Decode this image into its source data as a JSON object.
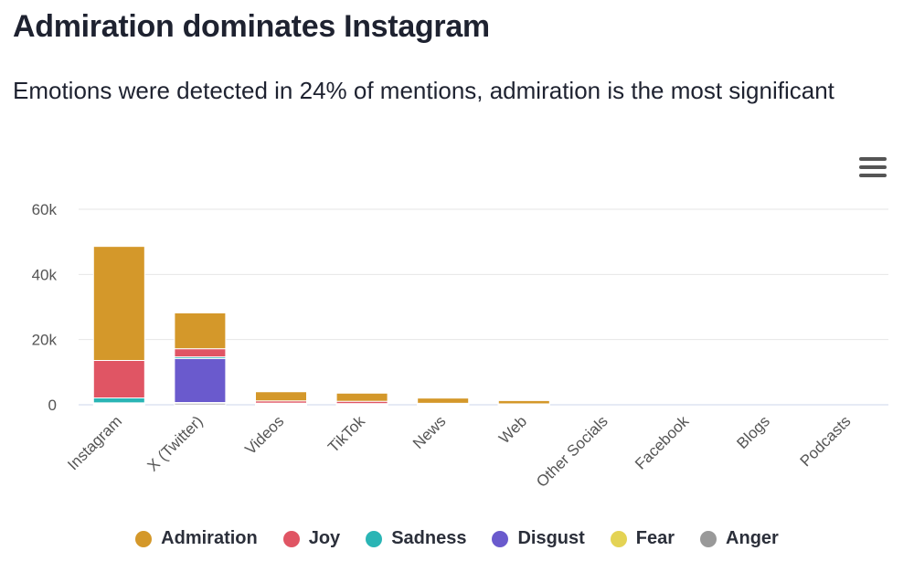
{
  "title": "Admiration dominates Instagram",
  "subtitle": "Emotions were detected in 24% of mentions, admiration is the most significant",
  "menu_icon": "hamburger-menu-icon",
  "chart_data": {
    "type": "bar",
    "stacked": true,
    "categories": [
      "Instagram",
      "X (Twitter)",
      "Videos",
      "TikTok",
      "News",
      "Web",
      "Other Socials",
      "Facebook",
      "Blogs",
      "Podcasts"
    ],
    "ylim": [
      0,
      60000
    ],
    "yticks": [
      0,
      20000,
      40000,
      60000
    ],
    "ytick_labels": [
      "0",
      "20k",
      "40k",
      "60k"
    ],
    "series": [
      {
        "name": "Anger",
        "color": "#999999",
        "values": [
          300,
          500,
          100,
          80,
          30,
          20,
          0,
          0,
          0,
          0
        ]
      },
      {
        "name": "Fear",
        "color": "#e4d354",
        "values": [
          100,
          200,
          50,
          40,
          20,
          10,
          0,
          0,
          0,
          0
        ]
      },
      {
        "name": "Disgust",
        "color": "#6a5acd",
        "values": [
          200,
          13500,
          200,
          100,
          50,
          30,
          0,
          0,
          0,
          0
        ]
      },
      {
        "name": "Sadness",
        "color": "#2ab5b5",
        "values": [
          1500,
          500,
          150,
          150,
          60,
          30,
          0,
          0,
          0,
          0
        ]
      },
      {
        "name": "Joy",
        "color": "#e05564",
        "values": [
          11500,
          2500,
          700,
          700,
          300,
          200,
          0,
          0,
          0,
          0
        ]
      },
      {
        "name": "Admiration",
        "color": "#d4982a",
        "values": [
          35000,
          11000,
          2800,
          2500,
          1600,
          1000,
          0,
          0,
          0,
          0
        ]
      }
    ],
    "legend": [
      "Admiration",
      "Joy",
      "Sadness",
      "Disgust",
      "Fear",
      "Anger"
    ],
    "legend_position": "bottom",
    "grid": true
  }
}
